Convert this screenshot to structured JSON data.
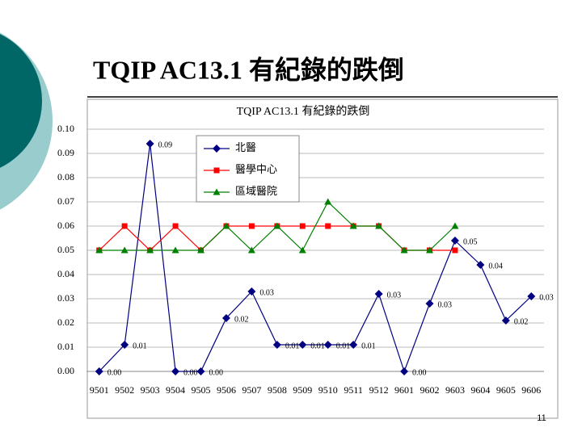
{
  "slide_title": "TQIP AC13.1 有紀錄的跌倒",
  "page_number": "11",
  "chart_data": {
    "type": "line",
    "title": "TQIP AC13.1 有紀錄的跌倒",
    "categories": [
      "9501",
      "9502",
      "9503",
      "9504",
      "9505",
      "9506",
      "9507",
      "9508",
      "9509",
      "9510",
      "9511",
      "9512",
      "9601",
      "9602",
      "9603",
      "9604",
      "9605",
      "9606"
    ],
    "series": [
      {
        "name": "北醫",
        "color": "#000080",
        "marker": "diamond",
        "values": [
          0,
          0.011,
          0.094,
          0,
          0,
          0.022,
          0.033,
          0.011,
          0.011,
          0.011,
          0.011,
          0.032,
          0,
          0.028,
          0.054,
          0.044,
          0.021,
          0.031
        ],
        "value_labels": [
          "0.00",
          "0.01",
          "0.09",
          "0.00",
          "0.00",
          "0.02",
          "0.03",
          "0.01",
          "0.01",
          "0.01",
          "0.01",
          "0.03",
          "0.00",
          "0.03",
          "0.05",
          "0.04",
          "0.02",
          "0.03"
        ]
      },
      {
        "name": "醫學中心",
        "color": "#ff0000",
        "marker": "square",
        "values": [
          0.05,
          0.06,
          0.05,
          0.06,
          0.05,
          0.06,
          0.06,
          0.06,
          0.06,
          0.06,
          0.06,
          0.06,
          0.05,
          0.05,
          0.05,
          null,
          null,
          null
        ]
      },
      {
        "name": "區域醫院",
        "color": "#008000",
        "marker": "triangle",
        "values": [
          0.05,
          0.05,
          0.05,
          0.05,
          0.05,
          0.06,
          0.05,
          0.06,
          0.05,
          0.07,
          0.06,
          0.06,
          0.05,
          0.05,
          0.06,
          null,
          null,
          null
        ]
      }
    ],
    "ylim": [
      0,
      0.1
    ],
    "yticks": [
      {
        "value": 0,
        "label": "0.00"
      },
      {
        "value": 0.01,
        "label": "0.01"
      },
      {
        "value": 0.02,
        "label": "0.02"
      },
      {
        "value": 0.03,
        "label": "0.03"
      },
      {
        "value": 0.04,
        "label": "0.04"
      },
      {
        "value": 0.05,
        "label": "0.05"
      },
      {
        "value": 0.06,
        "label": "0.06"
      },
      {
        "value": 0.07,
        "label": "0.07"
      },
      {
        "value": 0.08,
        "label": "0.08"
      },
      {
        "value": 0.09,
        "label": "0.09"
      },
      {
        "value": 0.1,
        "label": "0.10"
      }
    ],
    "grid": true,
    "legend": "top-left"
  }
}
